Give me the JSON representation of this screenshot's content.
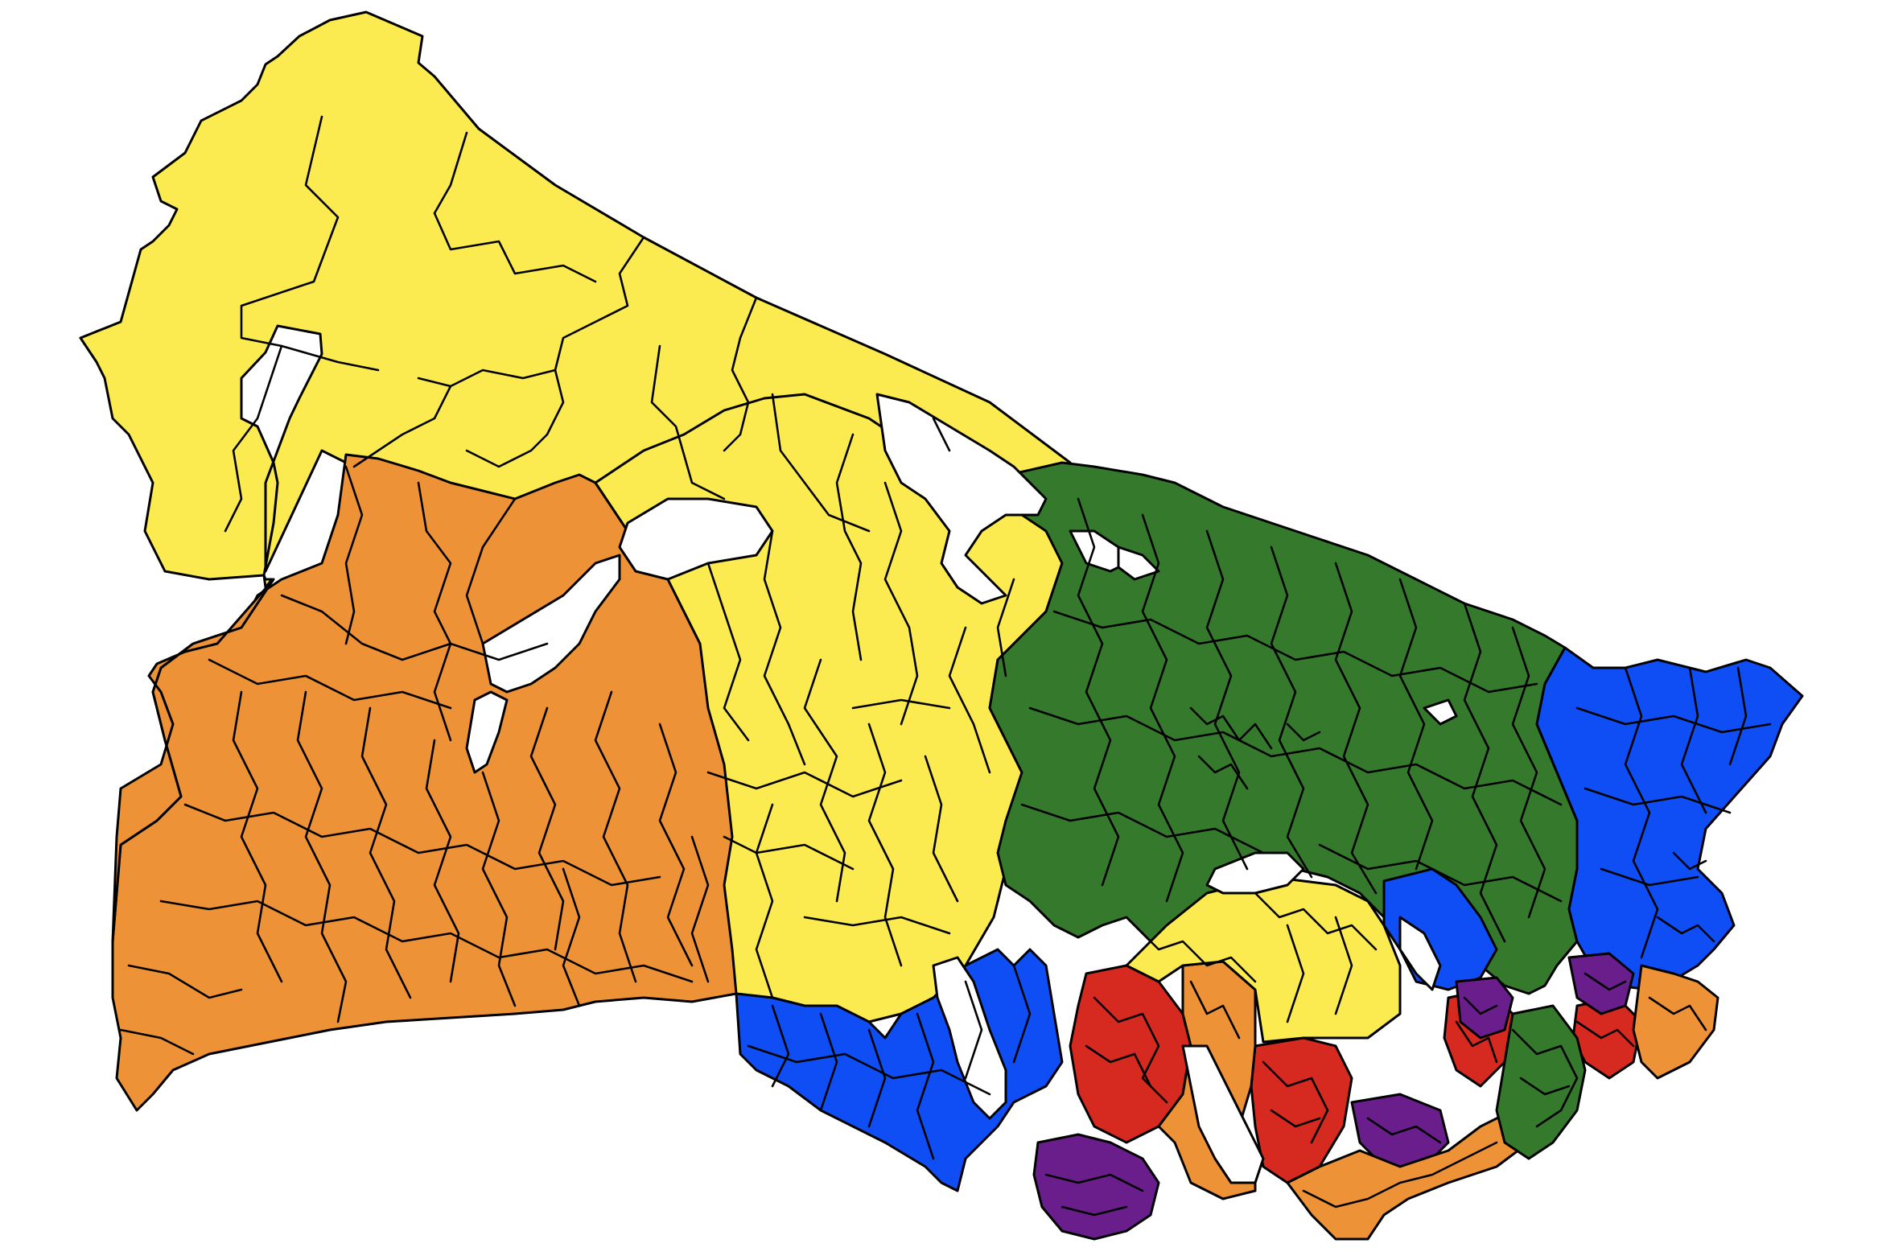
{
  "map": {
    "palette": {
      "yellow": "#FCEB50",
      "orange": "#EE9237",
      "green": "#357A2C",
      "blue": "#0F4EF5",
      "red": "#D6291F",
      "purple": "#6A1E8C",
      "outline": "#000000",
      "background": "#FFFFFF"
    }
  }
}
